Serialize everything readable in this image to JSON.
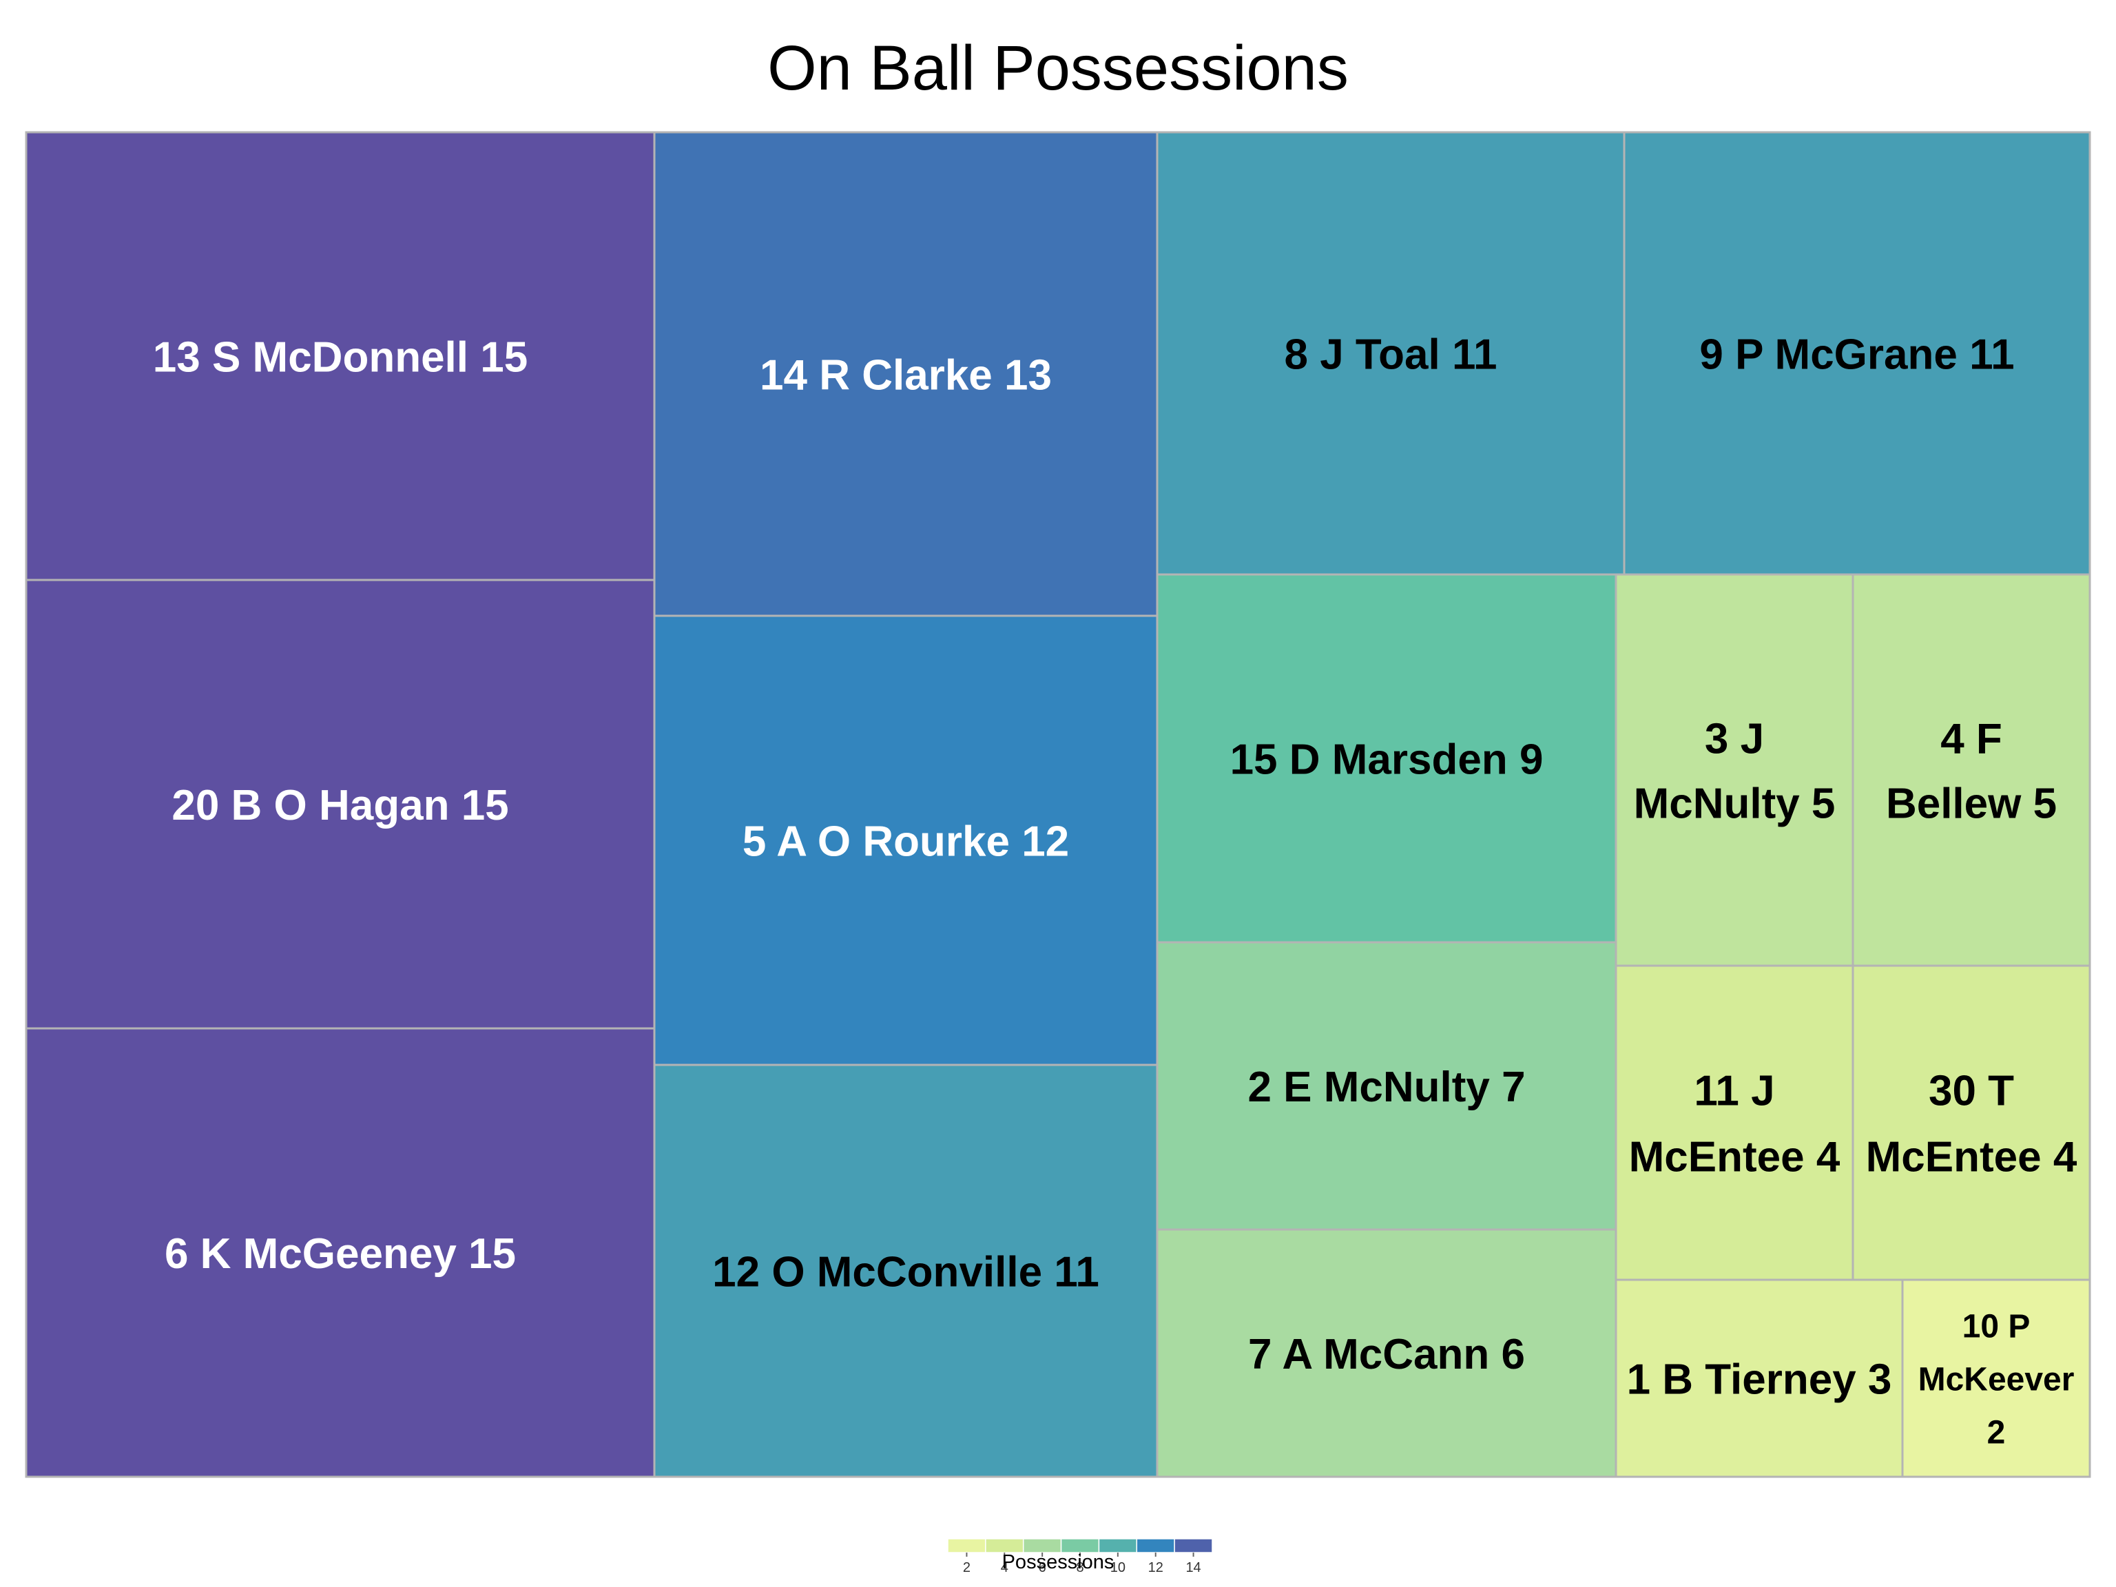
{
  "chart_data": {
    "type": "treemap",
    "title": "On Ball Possessions",
    "value_label": "Possessions",
    "color_scale": {
      "min": 1,
      "max": 15,
      "colors": [
        "#f1f8a7",
        "#d5ec98",
        "#a9dba1",
        "#62c3a5",
        "#479eb4",
        "#3385be",
        "#4073b4",
        "#5e50a1"
      ],
      "stops": [
        1,
        4,
        6,
        9,
        11,
        12,
        13,
        15
      ]
    },
    "legend": {
      "ticks": [
        2,
        4,
        6,
        8,
        10,
        12,
        14
      ],
      "title": "Possessions"
    },
    "tiles": [
      {
        "label": "13 S McDonnell 15",
        "lines": [
          "13 S McDonnell 15"
        ],
        "value": 15
      },
      {
        "label": "20 B O Hagan 15",
        "lines": [
          "20 B O Hagan 15"
        ],
        "value": 15
      },
      {
        "label": "6 K McGeeney 15",
        "lines": [
          "6 K McGeeney 15"
        ],
        "value": 15
      },
      {
        "label": "14 R Clarke 13",
        "lines": [
          "14 R Clarke 13"
        ],
        "value": 13
      },
      {
        "label": "5 A O Rourke 12",
        "lines": [
          "5 A O Rourke 12"
        ],
        "value": 12
      },
      {
        "label": "12 O McConville 11",
        "lines": [
          "12 O McConville 11"
        ],
        "value": 11
      },
      {
        "label": "8 J Toal 11",
        "lines": [
          "8 J Toal 11"
        ],
        "value": 11
      },
      {
        "label": "9 P McGrane 11",
        "lines": [
          "9 P McGrane 11"
        ],
        "value": 11
      },
      {
        "label": "15 D Marsden 9",
        "lines": [
          "15 D Marsden 9"
        ],
        "value": 9
      },
      {
        "label": "3 J McNulty 5",
        "lines": [
          "3 J",
          "McNulty 5"
        ],
        "value": 5
      },
      {
        "label": "4 F Bellew 5",
        "lines": [
          "4 F",
          "Bellew 5"
        ],
        "value": 5
      },
      {
        "label": "2 E McNulty 7",
        "lines": [
          "2 E McNulty 7"
        ],
        "value": 7
      },
      {
        "label": "11 J McEntee 4",
        "lines": [
          "11 J",
          "McEntee 4"
        ],
        "value": 4
      },
      {
        "label": "30 T McEntee 4",
        "lines": [
          "30 T",
          "McEntee 4"
        ],
        "value": 4
      },
      {
        "label": "7 A McCann 6",
        "lines": [
          "7 A McCann 6"
        ],
        "value": 6
      },
      {
        "label": "1 B Tierney 3",
        "lines": [
          "1 B Tierney 3"
        ],
        "value": 3
      },
      {
        "label": "10 P McKeever 2",
        "lines": [
          "10 P",
          "McKeever",
          "2"
        ],
        "value": 2
      }
    ]
  }
}
